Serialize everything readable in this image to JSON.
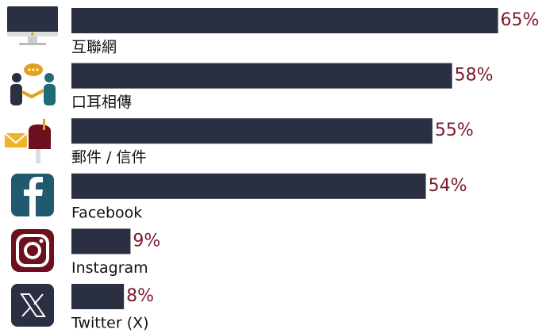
{
  "chart_data": {
    "type": "bar",
    "orientation": "horizontal",
    "categories": [
      "互聯網",
      "口耳相傳",
      "郵件 / 信件",
      "Facebook",
      "Instagram",
      "Twitter (X)"
    ],
    "values": [
      65,
      58,
      55,
      54,
      9,
      8
    ],
    "value_labels": [
      "65%",
      "58%",
      "55%",
      "54%",
      "9%",
      "8%"
    ],
    "color": "#2b2f42",
    "label_color": "#7a1a2a"
  }
}
